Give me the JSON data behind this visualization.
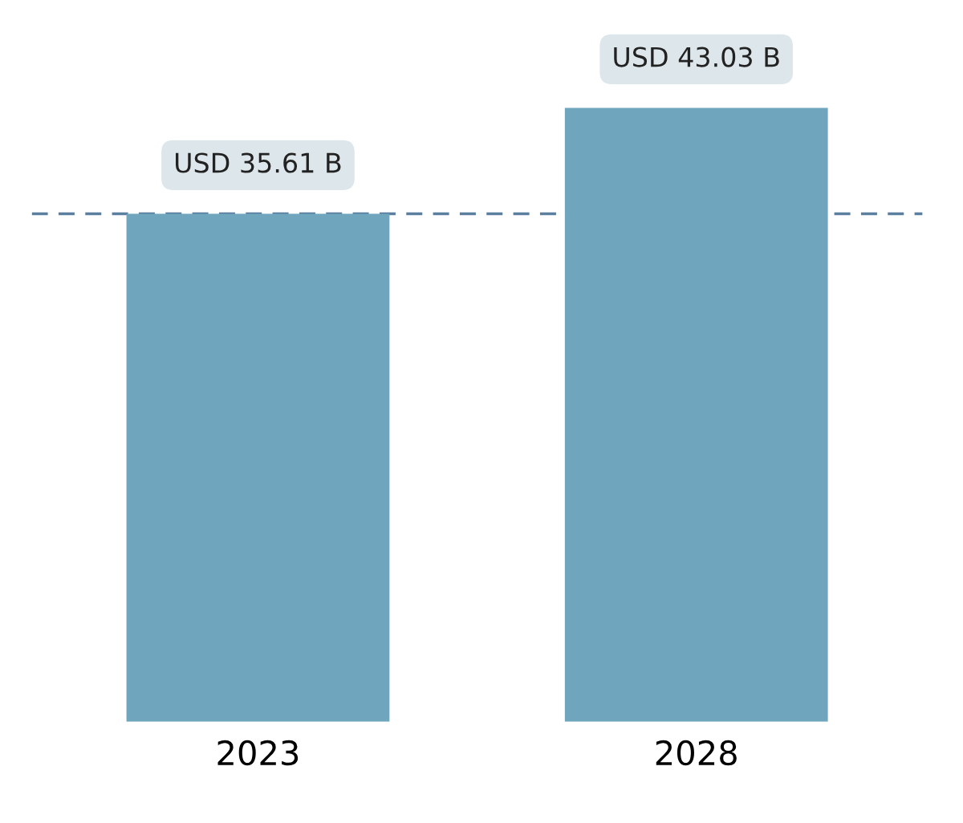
{
  "chart_data": {
    "type": "bar",
    "categories": [
      "2023",
      "2028"
    ],
    "values": [
      35.61,
      43.03
    ],
    "value_labels": [
      "USD 35.61 B",
      "USD 43.03 B"
    ],
    "color": "#6fa6bd",
    "ylim": [
      0,
      48
    ],
    "tick_labels": "x",
    "grid": false,
    "legend": false,
    "ref_lines": [
      {
        "axis": "y",
        "value": 35.61,
        "color": "#5b7f9e",
        "line_style": "dashed"
      }
    ]
  }
}
